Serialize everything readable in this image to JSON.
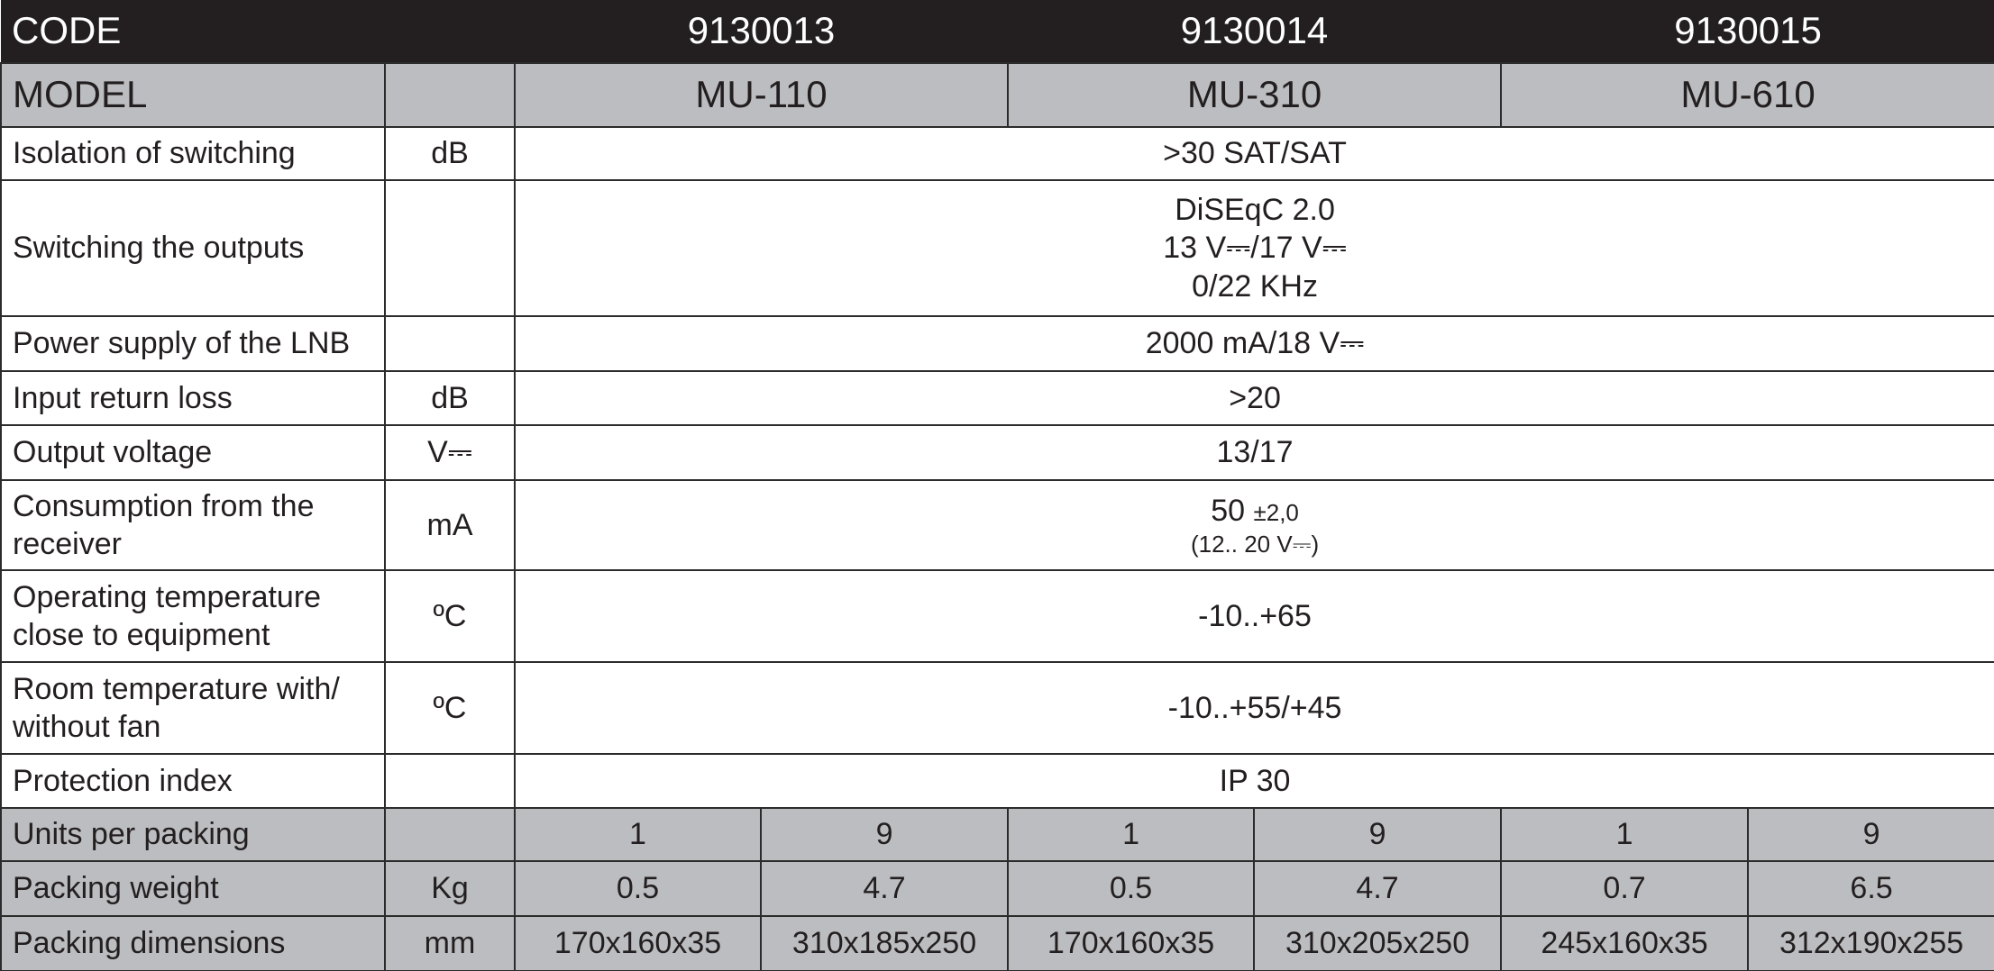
{
  "header": {
    "code_label": "CODE",
    "codes": [
      "9130013",
      "9130014",
      "9130015"
    ]
  },
  "model": {
    "label": "MODEL",
    "models": [
      "MU-110",
      "MU-310",
      "MU-610"
    ]
  },
  "specs": [
    {
      "label": "Isolation of switching",
      "unit": "dB",
      "lines": [
        ">30 SAT/SAT"
      ]
    },
    {
      "label": "Switching the outputs",
      "lines": [
        "DiSEqC 2.0",
        "13 V⎓/17 V⎓",
        "0/22 KHz"
      ]
    },
    {
      "label": "Power supply of the LNB",
      "lines": [
        "2000 mA/18 V⎓"
      ]
    },
    {
      "label": "Input return loss",
      "unit": "dB",
      "lines": [
        ">20"
      ]
    },
    {
      "label": "Output voltage",
      "unit": "V⎓",
      "lines": [
        "13/17"
      ]
    },
    {
      "label": "Consumption from the receiver",
      "unit": "mA",
      "main": "50",
      "tolerance": "±2,0",
      "note": "(12.. 20 V⎓)"
    },
    {
      "label": "Operating temperature close to equipment",
      "unit": "ºC",
      "lines": [
        "-10..+65"
      ]
    },
    {
      "label": "Room temperature with/ without fan",
      "unit": "ºC",
      "lines": [
        "-10..+55/+45"
      ]
    },
    {
      "label": "Protection index",
      "lines": [
        "IP 30"
      ]
    }
  ],
  "packing": [
    {
      "label": "Units per packing",
      "values": [
        "1",
        "9",
        "1",
        "9",
        "1",
        "9"
      ]
    },
    {
      "label": "Packing weight",
      "unit": "Kg",
      "values": [
        "0.5",
        "4.7",
        "0.5",
        "4.7",
        "0.7",
        "6.5"
      ]
    },
    {
      "label": "Packing dimensions",
      "unit": "mm",
      "values": [
        "170x160x35",
        "310x185x250",
        "170x160x35",
        "310x205x250",
        "245x160x35",
        "312x190x255"
      ]
    }
  ]
}
